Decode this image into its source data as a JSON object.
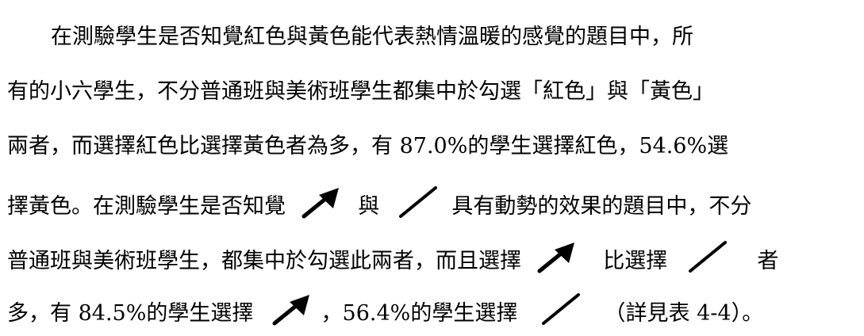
{
  "paragraph": {
    "line1": "在測驗學生是否知覺紅色與黃色能代表熱情溫暖的感覺的題目中，所",
    "line2": "有的小六學生，不分普通班與美術班學生都集中於勾選「紅色」與「黃色」",
    "line3": "兩者，而選擇紅色比選擇黃色者為多，有 87.0%的學生選擇紅色，54.6%選",
    "line4_a": "擇黃色。在測驗學生是否知覺",
    "line4_b": "與",
    "line4_c": "具有動勢的效果的題目中，不分",
    "line5_a": "普通班與美術班學生，都集中於勾選此兩者，而且選擇",
    "line5_b": "比選擇",
    "line5_c": "者",
    "line6_a": "多，有 84.5%的學生選擇",
    "line6_b": "，56.4%的學生選擇",
    "line6_c": "（詳見表 4-4）。"
  },
  "icons": {
    "arrow": "arrow-up-right-icon",
    "slash": "diagonal-line-icon"
  }
}
